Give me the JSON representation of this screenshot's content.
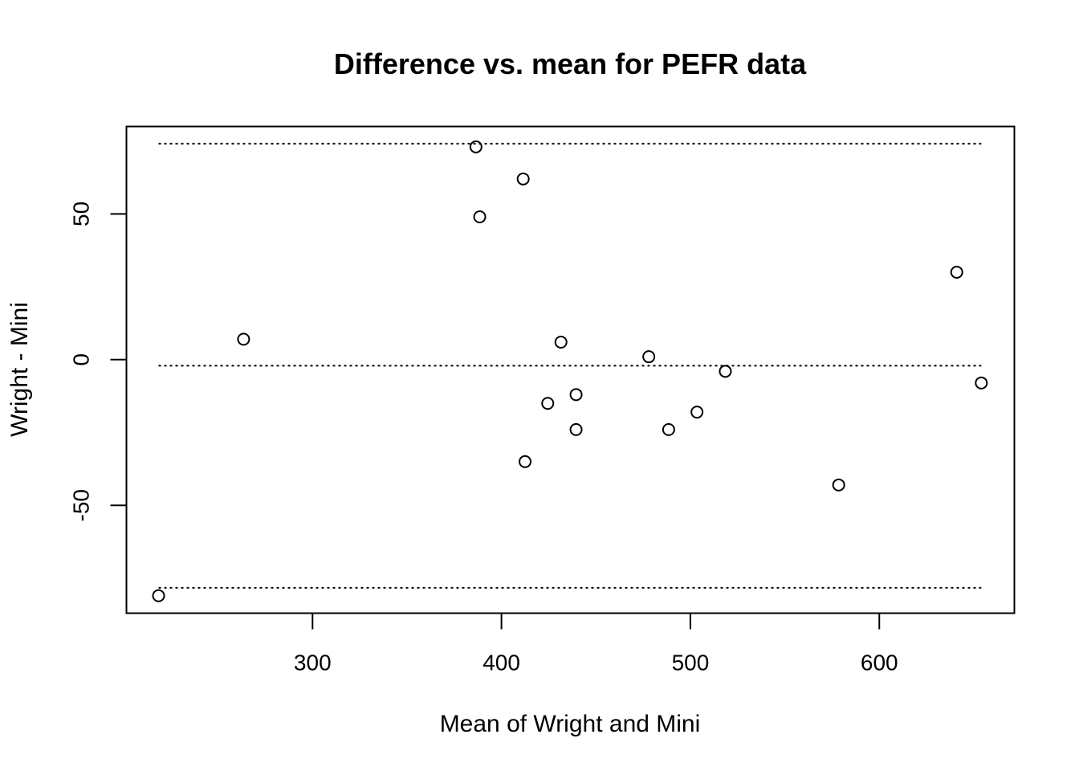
{
  "chart_data": {
    "type": "scatter",
    "title": "Difference vs. mean for PEFR data",
    "xlabel": "Mean of Wright and Mini",
    "ylabel": "Wright - Mini",
    "xlim": [
      201.5,
      671.5
    ],
    "ylim": [
      -87,
      80
    ],
    "x_ticks": [
      300,
      400,
      500,
      600
    ],
    "x_tick_labels": [
      "300",
      "400",
      "500",
      "600"
    ],
    "y_ticks": [
      -50,
      0,
      50
    ],
    "y_tick_labels": [
      "-50",
      "0",
      "50"
    ],
    "grid": false,
    "legend": "none",
    "points": [
      {
        "x": 218.5,
        "y": -81
      },
      {
        "x": 263.5,
        "y": 7
      },
      {
        "x": 386.5,
        "y": 73
      },
      {
        "x": 388.5,
        "y": 49
      },
      {
        "x": 411.5,
        "y": 62
      },
      {
        "x": 412.5,
        "y": -35
      },
      {
        "x": 424.5,
        "y": -15
      },
      {
        "x": 431.5,
        "y": 6
      },
      {
        "x": 439.5,
        "y": -12
      },
      {
        "x": 439.5,
        "y": -24
      },
      {
        "x": 478.0,
        "y": 1
      },
      {
        "x": 488.5,
        "y": -24
      },
      {
        "x": 503.5,
        "y": -18
      },
      {
        "x": 518.5,
        "y": -4
      },
      {
        "x": 578.5,
        "y": -43
      },
      {
        "x": 641.0,
        "y": 30
      },
      {
        "x": 654.0,
        "y": -8
      }
    ],
    "reference_lines": [
      {
        "name": "mean",
        "y": -2.1
      },
      {
        "name": "upper-limit",
        "y": 74.1
      },
      {
        "name": "lower-limit",
        "y": -78.3
      }
    ],
    "reference_line_x_range": [
      218.5,
      654.0
    ],
    "colors": {
      "points": "#000000",
      "lines": "#000000",
      "background": "#ffffff"
    }
  }
}
